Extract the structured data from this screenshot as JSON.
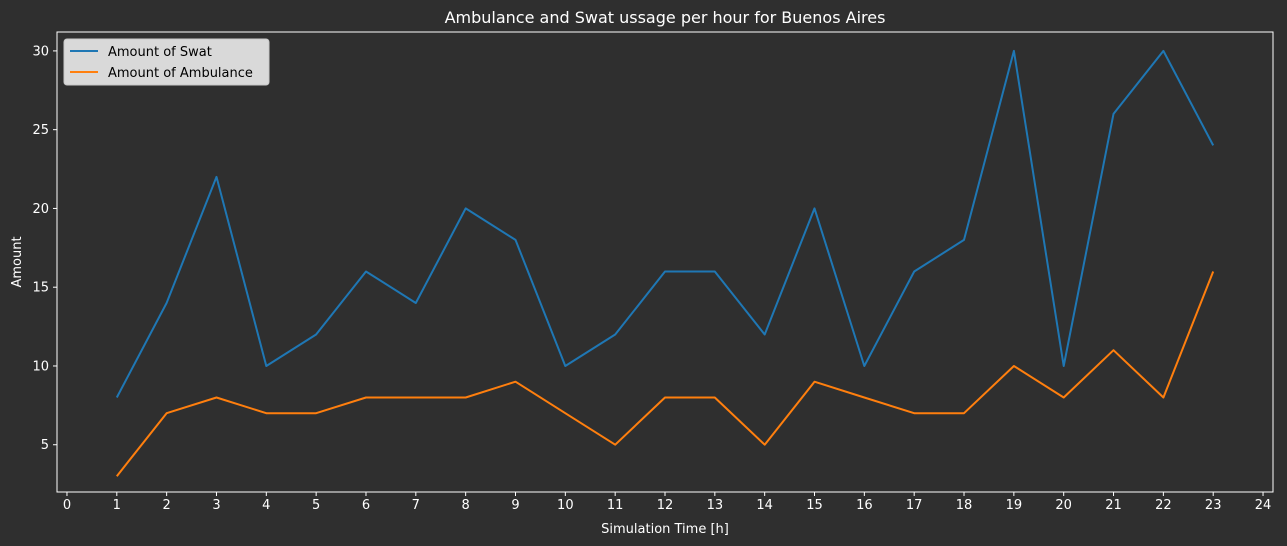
{
  "chart_data": {
    "type": "line",
    "title": "Ambulance and Swat ussage per hour for Buenos Aires",
    "xlabel": "Simulation Time [h]",
    "ylabel": "Amount",
    "xlim": [
      -0.2,
      24.2
    ],
    "ylim": [
      2.0,
      31.2
    ],
    "xticks": [
      0,
      1,
      2,
      3,
      4,
      5,
      6,
      7,
      8,
      9,
      10,
      11,
      12,
      13,
      14,
      15,
      16,
      17,
      18,
      19,
      20,
      21,
      22,
      23,
      24
    ],
    "yticks": [
      5,
      10,
      15,
      20,
      25,
      30
    ],
    "grid": false,
    "legend_position": "top-left",
    "x": [
      1,
      2,
      3,
      4,
      5,
      6,
      7,
      8,
      9,
      10,
      11,
      12,
      13,
      14,
      15,
      16,
      17,
      18,
      19,
      20,
      21,
      22,
      23
    ],
    "series": [
      {
        "name": "Amount of Swat",
        "color": "#1f77b4",
        "values": [
          8,
          14,
          22,
          10,
          12,
          16,
          14,
          20,
          18,
          10,
          12,
          16,
          16,
          12,
          20,
          10,
          16,
          18,
          30,
          10,
          26,
          30,
          24
        ]
      },
      {
        "name": "Amount of Ambulance",
        "color": "#ff7f0e",
        "values": [
          3,
          7,
          8,
          7,
          7,
          8,
          8,
          8,
          9,
          7,
          5,
          8,
          8,
          5,
          9,
          8,
          7,
          7,
          10,
          8,
          11,
          8,
          16
        ]
      }
    ]
  }
}
